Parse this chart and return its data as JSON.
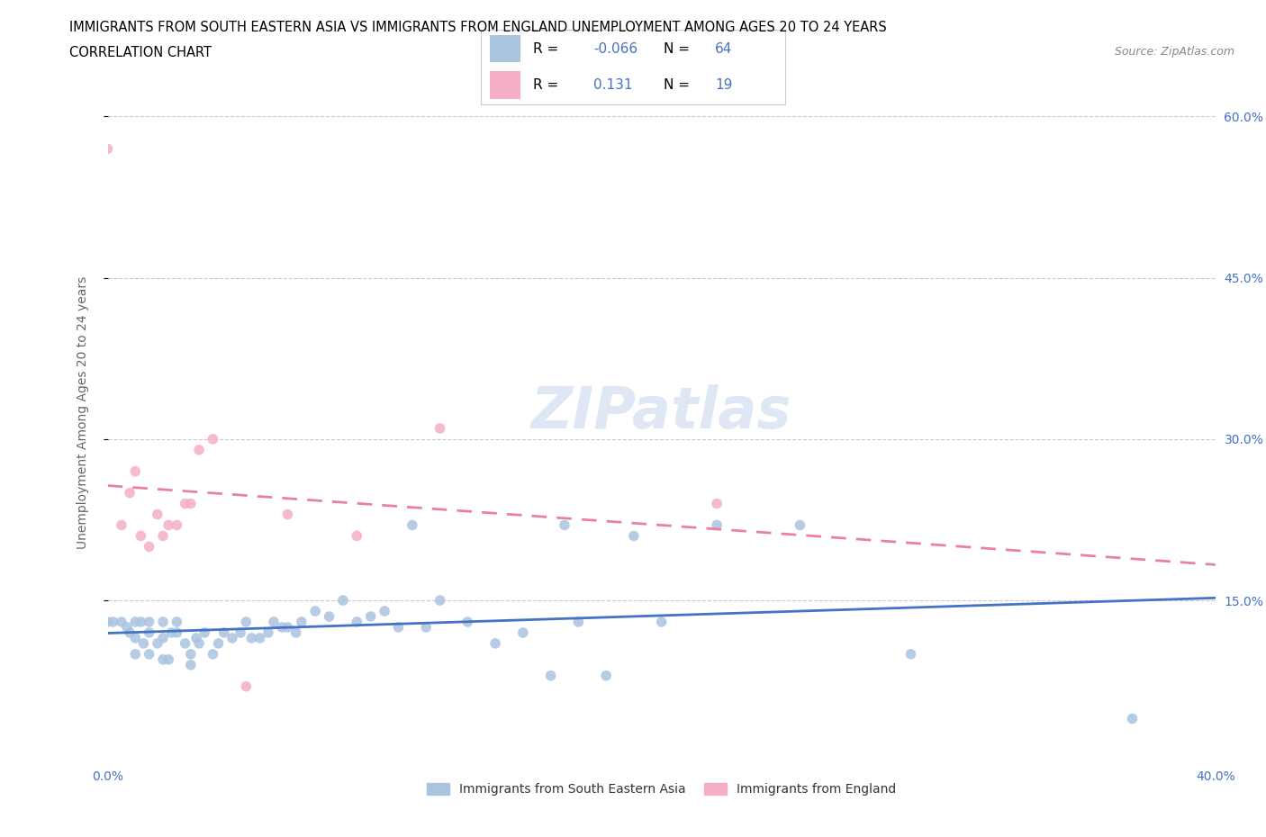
{
  "title_line1": "IMMIGRANTS FROM SOUTH EASTERN ASIA VS IMMIGRANTS FROM ENGLAND UNEMPLOYMENT AMONG AGES 20 TO 24 YEARS",
  "title_line2": "CORRELATION CHART",
  "source_text": "Source: ZipAtlas.com",
  "ylabel": "Unemployment Among Ages 20 to 24 years",
  "watermark": "ZIPatlas",
  "legend_R1": "-0.066",
  "legend_N1": "64",
  "legend_R2": "0.131",
  "legend_N2": "19",
  "color_blue": "#aac4e0",
  "color_pink": "#f4afc4",
  "color_blue_dark": "#4472c4",
  "trendline_blue_color": "#4472c4",
  "trendline_pink_color": "#e8829a",
  "legend_label1": "Immigrants from South Eastern Asia",
  "legend_label2": "Immigrants from England",
  "xlim": [
    0.0,
    0.4
  ],
  "ylim": [
    0.0,
    0.65
  ],
  "blue_x": [
    0.0,
    0.002,
    0.005,
    0.007,
    0.008,
    0.01,
    0.01,
    0.01,
    0.012,
    0.013,
    0.015,
    0.015,
    0.015,
    0.018,
    0.02,
    0.02,
    0.02,
    0.022,
    0.023,
    0.025,
    0.025,
    0.028,
    0.03,
    0.03,
    0.032,
    0.033,
    0.035,
    0.038,
    0.04,
    0.042,
    0.045,
    0.048,
    0.05,
    0.052,
    0.055,
    0.058,
    0.06,
    0.063,
    0.065,
    0.068,
    0.07,
    0.075,
    0.08,
    0.085,
    0.09,
    0.095,
    0.1,
    0.105,
    0.11,
    0.115,
    0.12,
    0.13,
    0.14,
    0.15,
    0.16,
    0.165,
    0.17,
    0.18,
    0.19,
    0.2,
    0.22,
    0.25,
    0.29,
    0.37
  ],
  "blue_y": [
    0.13,
    0.13,
    0.13,
    0.125,
    0.12,
    0.1,
    0.115,
    0.13,
    0.13,
    0.11,
    0.1,
    0.12,
    0.13,
    0.11,
    0.095,
    0.115,
    0.13,
    0.095,
    0.12,
    0.12,
    0.13,
    0.11,
    0.09,
    0.1,
    0.115,
    0.11,
    0.12,
    0.1,
    0.11,
    0.12,
    0.115,
    0.12,
    0.13,
    0.115,
    0.115,
    0.12,
    0.13,
    0.125,
    0.125,
    0.12,
    0.13,
    0.14,
    0.135,
    0.15,
    0.13,
    0.135,
    0.14,
    0.125,
    0.22,
    0.125,
    0.15,
    0.13,
    0.11,
    0.12,
    0.08,
    0.22,
    0.13,
    0.08,
    0.21,
    0.13,
    0.22,
    0.22,
    0.1,
    0.04
  ],
  "pink_x": [
    0.0,
    0.005,
    0.008,
    0.01,
    0.012,
    0.015,
    0.018,
    0.02,
    0.022,
    0.025,
    0.028,
    0.03,
    0.033,
    0.038,
    0.05,
    0.065,
    0.09,
    0.12,
    0.22
  ],
  "pink_y": [
    0.57,
    0.22,
    0.25,
    0.27,
    0.21,
    0.2,
    0.23,
    0.21,
    0.22,
    0.22,
    0.24,
    0.24,
    0.29,
    0.3,
    0.07,
    0.23,
    0.21,
    0.31,
    0.24
  ]
}
